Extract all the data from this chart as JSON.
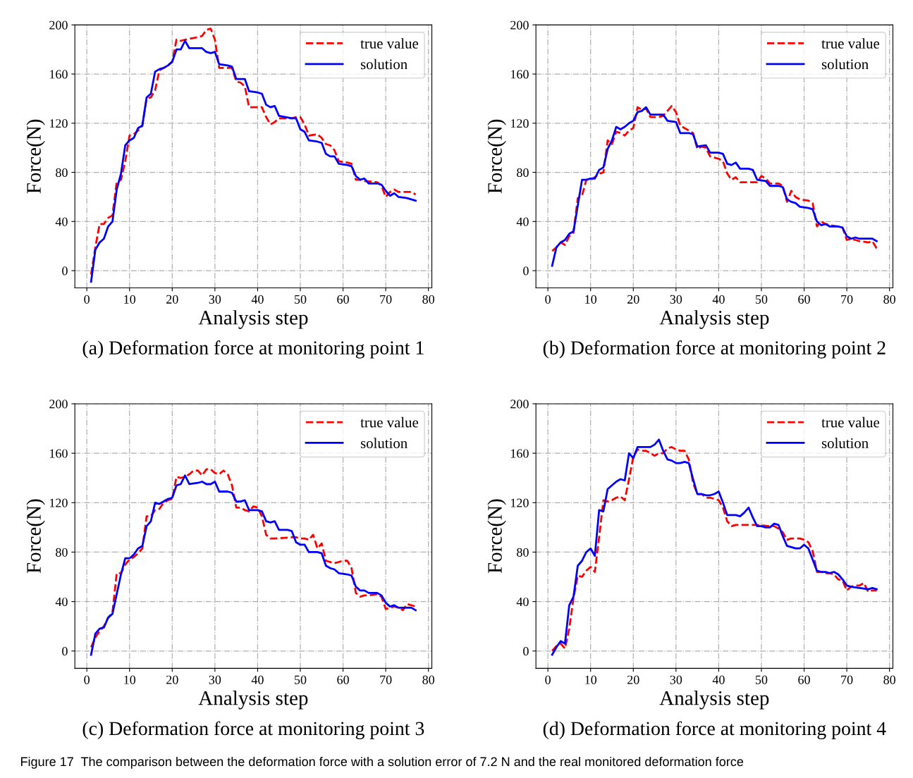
{
  "chart_data": [
    {
      "type": "line",
      "title": "(a) Deformation force at monitoring point 1",
      "xlabel": "Analysis step",
      "ylabel": "Force(N)",
      "xlim": [
        -2.8,
        80.8
      ],
      "ylim": [
        -14,
        200
      ],
      "xticks": [
        0,
        10,
        20,
        30,
        40,
        50,
        60,
        70,
        80
      ],
      "yticks": [
        0,
        40,
        80,
        120,
        160,
        200
      ],
      "grid": true,
      "legend": "top right",
      "annotations": [
        "Figure 17  The comparison between the deformation force with a solution error of 7.2 N and the real monitored deformation force"
      ],
      "series": [
        {
          "name": "true value",
          "color": "#ff0000",
          "line_style": "dashed",
          "x": [
            1,
            2,
            3,
            4,
            5,
            6,
            7,
            8,
            9,
            10,
            11,
            12,
            13,
            14,
            15,
            16,
            17,
            18,
            19,
            20,
            21,
            22,
            23,
            26,
            27,
            28,
            29,
            30,
            31,
            34,
            35,
            36,
            37,
            38,
            41,
            42,
            43,
            44,
            45,
            48,
            49,
            50,
            51,
            52,
            54,
            55,
            56,
            57,
            58,
            59,
            61,
            62,
            63,
            64,
            65,
            68,
            69,
            70,
            71,
            72,
            73,
            76,
            77
          ],
          "values": [
            -3,
            19,
            38,
            38,
            43,
            45,
            72,
            74,
            89,
            110,
            111,
            114,
            118,
            140,
            141,
            147,
            163,
            165,
            167,
            170,
            188,
            187,
            188,
            190,
            191,
            196,
            197,
            188,
            165,
            165,
            154,
            153,
            150,
            133,
            133,
            125,
            119,
            121,
            124,
            124,
            125,
            125,
            119,
            110,
            111,
            108,
            103,
            102,
            98,
            89,
            88,
            87,
            74,
            74,
            73,
            72,
            69,
            60,
            64,
            66,
            64,
            64,
            62
          ]
        },
        {
          "name": "solution",
          "color": "#0000ff",
          "line_style": "solid",
          "x": [
            1,
            2,
            3,
            4,
            5,
            6,
            7,
            8,
            9,
            10,
            11,
            12,
            13,
            14,
            15,
            16,
            17,
            18,
            19,
            20,
            21,
            22,
            23,
            24,
            27,
            28,
            29,
            30,
            31,
            33,
            34,
            35,
            37,
            38,
            40,
            41,
            42,
            43,
            44,
            45,
            48,
            49,
            50,
            51,
            52,
            54,
            55,
            56,
            57,
            58,
            59,
            61,
            62,
            63,
            64,
            65,
            66,
            68,
            69,
            70,
            71,
            72,
            73,
            75,
            77
          ],
          "values": [
            -9,
            17,
            23,
            26,
            36,
            40,
            66,
            79,
            102,
            106,
            108,
            116,
            118,
            141,
            144,
            162,
            164,
            165,
            167,
            170,
            180,
            180,
            187,
            181,
            181,
            178,
            177,
            178,
            168,
            167,
            166,
            156,
            156,
            146,
            145,
            144,
            135,
            133,
            134,
            126,
            124,
            124,
            115,
            113,
            106,
            105,
            104,
            95,
            93,
            93,
            87,
            86,
            85,
            77,
            74,
            75,
            71,
            71,
            70,
            65,
            61,
            63,
            60,
            59,
            57
          ]
        }
      ]
    },
    {
      "type": "line",
      "title": "(b) Deformation force at monitoring point 2",
      "xlabel": "Analysis step",
      "ylabel": "Force(N)",
      "xlim": [
        -2.8,
        80.8
      ],
      "ylim": [
        -14,
        200
      ],
      "xticks": [
        0,
        10,
        20,
        30,
        40,
        50,
        60,
        70,
        80
      ],
      "yticks": [
        0,
        40,
        80,
        120,
        160,
        200
      ],
      "grid": true,
      "legend": "top right",
      "series": [
        {
          "name": "true value",
          "color": "#ff0000",
          "line_style": "dashed",
          "x": [
            1,
            2,
            3,
            4,
            5,
            6,
            7,
            8,
            9,
            10,
            11,
            12,
            13,
            14,
            15,
            16,
            17,
            18,
            19,
            20,
            21,
            22,
            23,
            24,
            26,
            27,
            28,
            29,
            30,
            31,
            32,
            33,
            34,
            35,
            36,
            37,
            38,
            39,
            40,
            41,
            42,
            43,
            44,
            45,
            49,
            50,
            51,
            52,
            54,
            55,
            56,
            57,
            58,
            59,
            61,
            62,
            63,
            64,
            65,
            66,
            68,
            69,
            70,
            71,
            72,
            73,
            75,
            76,
            77
          ],
          "values": [
            16,
            19,
            23,
            21,
            28,
            31,
            59,
            61,
            74,
            74,
            76,
            79,
            80,
            106,
            103,
            113,
            112,
            110,
            114,
            116,
            133,
            131,
            132,
            125,
            125,
            126,
            130,
            134,
            129,
            118,
            116,
            114,
            112,
            99,
            101,
            100,
            93,
            92,
            91,
            89,
            79,
            74,
            76,
            72,
            72,
            77,
            75,
            71,
            71,
            69,
            56,
            65,
            60,
            58,
            57,
            55,
            36,
            40,
            38,
            37,
            36,
            35,
            25,
            26,
            25,
            24,
            23,
            24,
            18
          ]
        },
        {
          "name": "solution",
          "color": "#0000ff",
          "line_style": "solid",
          "x": [
            1,
            2,
            3,
            4,
            5,
            6,
            7,
            8,
            9,
            10,
            11,
            12,
            13,
            14,
            15,
            16,
            17,
            18,
            19,
            20,
            21,
            22,
            23,
            24,
            26,
            27,
            28,
            30,
            31,
            33,
            34,
            35,
            37,
            38,
            40,
            41,
            42,
            43,
            44,
            45,
            47,
            48,
            49,
            51,
            52,
            54,
            55,
            56,
            57,
            58,
            59,
            61,
            62,
            63,
            64,
            65,
            66,
            68,
            69,
            70,
            71,
            72,
            73,
            76,
            77
          ],
          "values": [
            4,
            19,
            23,
            25,
            30,
            32,
            53,
            74,
            74,
            75,
            75,
            82,
            84,
            99,
            106,
            117,
            115,
            117,
            120,
            122,
            129,
            130,
            133,
            127,
            127,
            127,
            122,
            121,
            112,
            112,
            111,
            101,
            102,
            96,
            96,
            95,
            87,
            86,
            88,
            83,
            83,
            82,
            74,
            73,
            69,
            69,
            68,
            58,
            56,
            55,
            52,
            51,
            50,
            40,
            37,
            38,
            36,
            36,
            35,
            28,
            26,
            27,
            26,
            26,
            24
          ]
        }
      ]
    },
    {
      "type": "line",
      "title": "(c) Deformation force at monitoring point 3",
      "xlabel": "Analysis step",
      "ylabel": "Force(N)",
      "xlim": [
        -2.8,
        80.8
      ],
      "ylim": [
        -14,
        200
      ],
      "xticks": [
        0,
        10,
        20,
        30,
        40,
        50,
        60,
        70,
        80
      ],
      "yticks": [
        0,
        40,
        80,
        120,
        160,
        200
      ],
      "grid": true,
      "legend": "top right",
      "series": [
        {
          "name": "true value",
          "color": "#ff0000",
          "line_style": "dashed",
          "x": [
            1,
            2,
            3,
            4,
            5,
            6,
            7,
            8,
            9,
            10,
            11,
            12,
            13,
            14,
            15,
            16,
            17,
            18,
            19,
            20,
            21,
            22,
            23,
            24,
            25,
            26,
            27,
            28,
            29,
            30,
            31,
            32,
            33,
            34,
            35,
            36,
            37,
            38,
            39,
            40,
            41,
            42,
            43,
            44,
            48,
            49,
            50,
            51,
            52,
            53,
            54,
            55,
            56,
            58,
            59,
            60,
            61,
            62,
            63,
            64,
            65,
            66,
            68,
            69,
            70,
            71,
            72,
            73,
            74,
            75,
            77
          ],
          "values": [
            3,
            11,
            16,
            20,
            27,
            31,
            63,
            63,
            70,
            74,
            76,
            79,
            83,
            109,
            109,
            114,
            115,
            120,
            122,
            123,
            141,
            140,
            141,
            143,
            146,
            146,
            142,
            147,
            147,
            144,
            143,
            146,
            143,
            134,
            116,
            116,
            114,
            113,
            117,
            116,
            109,
            94,
            91,
            91,
            92,
            92,
            91,
            91,
            90,
            94,
            83,
            87,
            73,
            71,
            72,
            73,
            73,
            67,
            47,
            44,
            45,
            45,
            46,
            44,
            34,
            35,
            36,
            35,
            33,
            38,
            36
          ]
        },
        {
          "name": "solution",
          "color": "#0000ff",
          "line_style": "solid",
          "x": [
            1,
            2,
            3,
            4,
            5,
            6,
            7,
            8,
            9,
            10,
            11,
            12,
            13,
            14,
            15,
            16,
            17,
            18,
            19,
            20,
            21,
            22,
            23,
            24,
            26,
            27,
            28,
            29,
            30,
            31,
            33,
            34,
            35,
            36,
            37,
            38,
            40,
            41,
            42,
            43,
            44,
            45,
            47,
            48,
            49,
            50,
            51,
            52,
            54,
            55,
            56,
            57,
            58,
            59,
            61,
            62,
            63,
            64,
            65,
            66,
            68,
            69,
            70,
            71,
            72,
            73,
            76,
            77
          ],
          "values": [
            -3,
            14,
            18,
            19,
            27,
            30,
            46,
            62,
            75,
            75,
            78,
            83,
            85,
            101,
            105,
            120,
            119,
            121,
            123,
            124,
            134,
            135,
            142,
            135,
            136,
            137,
            135,
            135,
            137,
            129,
            129,
            128,
            121,
            121,
            122,
            114,
            114,
            113,
            105,
            104,
            105,
            98,
            98,
            97,
            88,
            86,
            86,
            80,
            80,
            79,
            69,
            67,
            66,
            63,
            62,
            61,
            52,
            49,
            49,
            47,
            47,
            45,
            39,
            36,
            37,
            35,
            35,
            33
          ]
        }
      ]
    },
    {
      "type": "line",
      "title": "(d) Deformation force at monitoring point 4",
      "xlabel": "Analysis step",
      "ylabel": "Force(N)",
      "xlim": [
        -2.8,
        80.8
      ],
      "ylim": [
        -14,
        200
      ],
      "xticks": [
        0,
        10,
        20,
        30,
        40,
        50,
        60,
        70,
        80
      ],
      "yticks": [
        0,
        40,
        80,
        120,
        160,
        200
      ],
      "grid": true,
      "legend": "top right",
      "series": [
        {
          "name": "true value",
          "color": "#ff0000",
          "line_style": "dashed",
          "x": [
            1,
            2,
            3,
            4,
            5,
            6,
            7,
            8,
            9,
            10,
            11,
            12,
            13,
            14,
            15,
            16,
            17,
            18,
            19,
            20,
            21,
            22,
            23,
            24,
            25,
            26,
            27,
            28,
            29,
            30,
            31,
            32,
            33,
            34,
            35,
            36,
            37,
            38,
            39,
            40,
            41,
            42,
            43,
            44,
            48,
            49,
            52,
            53,
            54,
            55,
            56,
            57,
            58,
            59,
            60,
            61,
            62,
            63,
            64,
            65,
            66,
            67,
            68,
            69,
            70,
            71,
            72,
            73,
            74,
            75,
            76,
            77
          ],
          "values": [
            0,
            4,
            6,
            2,
            18,
            43,
            61,
            60,
            65,
            68,
            64,
            92,
            122,
            121,
            122,
            124,
            125,
            122,
            139,
            157,
            163,
            162,
            162,
            160,
            158,
            160,
            160,
            164,
            165,
            163,
            162,
            162,
            155,
            136,
            127,
            127,
            124,
            124,
            123,
            122,
            116,
            105,
            101,
            102,
            102,
            102,
            101,
            101,
            99,
            96,
            90,
            91,
            91,
            91,
            90,
            88,
            81,
            64,
            64,
            63,
            63,
            62,
            58,
            57,
            49,
            52,
            53,
            53,
            55,
            48,
            49,
            49
          ]
        },
        {
          "name": "solution",
          "color": "#0000ff",
          "line_style": "solid",
          "x": [
            1,
            2,
            3,
            4,
            5,
            6,
            7,
            8,
            9,
            10,
            11,
            12,
            13,
            14,
            15,
            16,
            17,
            18,
            19,
            20,
            21,
            22,
            23,
            24,
            25,
            26,
            27,
            28,
            29,
            30,
            31,
            32,
            33,
            34,
            35,
            36,
            37,
            38,
            39,
            40,
            41,
            42,
            44,
            45,
            46,
            47,
            48,
            49,
            50,
            51,
            52,
            53,
            54,
            55,
            56,
            57,
            58,
            59,
            60,
            61,
            62,
            63,
            64,
            65,
            66,
            67,
            68,
            69,
            70,
            71,
            73,
            75,
            76,
            77
          ],
          "values": [
            -3,
            3,
            8,
            6,
            37,
            44,
            69,
            73,
            80,
            83,
            77,
            114,
            113,
            131,
            134,
            137,
            139,
            138,
            160,
            156,
            165,
            165,
            165,
            165,
            167,
            171,
            162,
            155,
            154,
            152,
            152,
            153,
            152,
            139,
            127,
            127,
            126,
            126,
            127,
            129,
            120,
            110,
            110,
            109,
            112,
            116,
            108,
            101,
            101,
            100,
            100,
            103,
            102,
            93,
            85,
            84,
            83,
            83,
            86,
            83,
            74,
            65,
            64,
            64,
            63,
            64,
            62,
            58,
            53,
            52,
            51,
            50,
            51,
            50
          ]
        }
      ]
    }
  ]
}
